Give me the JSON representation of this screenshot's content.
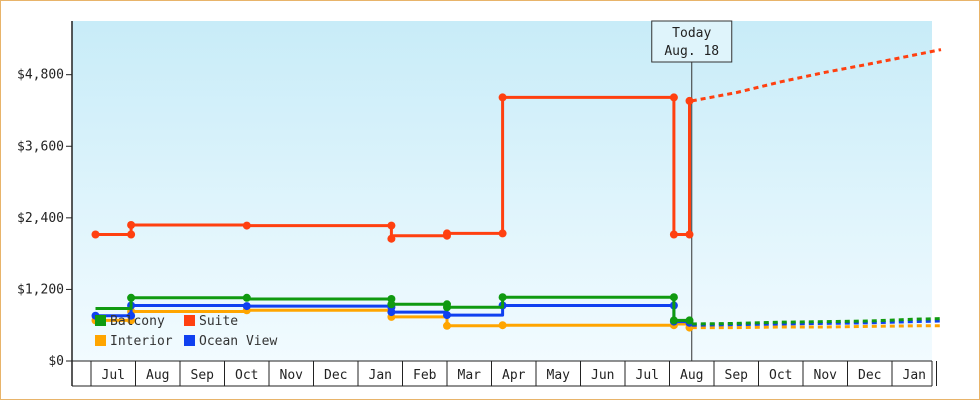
{
  "chart_data": {
    "type": "line",
    "title": "",
    "xlabel": "",
    "ylabel": "",
    "ylim": [
      0,
      5700
    ],
    "y_ticks": [
      0,
      1200,
      2400,
      3600,
      4800
    ],
    "y_tick_labels": [
      "$0",
      "$1,200",
      "$2,400",
      "$3,600",
      "$4,800"
    ],
    "x_range": [
      -0.4,
      18.6
    ],
    "x_tick_labels": [
      "Jul",
      "Aug",
      "Sep",
      "Oct",
      "Nov",
      "Dec",
      "Jan",
      "Feb",
      "Mar",
      "Apr",
      "May",
      "Jun",
      "Jul",
      "Aug",
      "Sep",
      "Oct",
      "Nov",
      "Dec",
      "Jan"
    ],
    "today": {
      "line1": "Today",
      "line2": "Aug. 18",
      "x": 13.0
    },
    "legend": {
      "placement": "bottom-left"
    },
    "grid": false,
    "series": [
      {
        "name": "Suite",
        "color": "#ff4010",
        "points": [
          [
            -0.4,
            2120
          ],
          [
            0.4,
            2120
          ],
          [
            0.4,
            2280
          ],
          [
            3.0,
            2280
          ],
          [
            3.0,
            2270
          ],
          [
            6.25,
            2270
          ],
          [
            6.25,
            2050
          ],
          [
            6.25,
            2100
          ],
          [
            7.5,
            2100
          ],
          [
            7.5,
            2140
          ],
          [
            8.75,
            2140
          ],
          [
            8.75,
            4420
          ],
          [
            12.6,
            4420
          ],
          [
            12.6,
            2120
          ],
          [
            12.95,
            2120
          ],
          [
            12.95,
            4360
          ],
          [
            13.0,
            4360
          ]
        ],
        "markers": [
          [
            -0.4,
            2120
          ],
          [
            0.4,
            2120
          ],
          [
            0.4,
            2280
          ],
          [
            3.0,
            2270
          ],
          [
            6.25,
            2270
          ],
          [
            6.25,
            2050
          ],
          [
            7.5,
            2100
          ],
          [
            7.5,
            2140
          ],
          [
            8.75,
            2140
          ],
          [
            8.75,
            4420
          ],
          [
            12.6,
            4420
          ],
          [
            12.6,
            2120
          ],
          [
            12.95,
            2120
          ],
          [
            12.95,
            4360
          ]
        ],
        "forecast": [
          [
            13.0,
            4360
          ],
          [
            14.0,
            4500
          ],
          [
            15.0,
            4680
          ],
          [
            16.0,
            4840
          ],
          [
            17.0,
            4980
          ],
          [
            18.0,
            5130
          ],
          [
            18.6,
            5220
          ]
        ]
      },
      {
        "name": "Balcony",
        "color": "#109a10",
        "points": [
          [
            -0.4,
            880
          ],
          [
            0.4,
            880
          ],
          [
            0.4,
            1060
          ],
          [
            3.0,
            1060
          ],
          [
            3.0,
            1040
          ],
          [
            6.25,
            1040
          ],
          [
            6.25,
            950
          ],
          [
            7.5,
            950
          ],
          [
            7.5,
            900
          ],
          [
            8.75,
            900
          ],
          [
            8.75,
            1070
          ],
          [
            12.6,
            1070
          ],
          [
            12.6,
            680
          ],
          [
            13.0,
            680
          ]
        ],
        "markers": [
          [
            0.4,
            1060
          ],
          [
            3.0,
            1060
          ],
          [
            6.25,
            1040
          ],
          [
            6.25,
            950
          ],
          [
            7.5,
            950
          ],
          [
            7.5,
            900
          ],
          [
            8.75,
            1070
          ],
          [
            12.6,
            1070
          ],
          [
            12.6,
            680
          ],
          [
            12.95,
            680
          ]
        ],
        "forecast": [
          [
            13.0,
            620
          ],
          [
            14.0,
            630
          ],
          [
            15.0,
            650
          ],
          [
            16.0,
            660
          ],
          [
            17.0,
            670
          ],
          [
            18.0,
            700
          ],
          [
            18.6,
            710
          ]
        ]
      },
      {
        "name": "Interior",
        "color": "#ffa500",
        "points": [
          [
            -0.4,
            680
          ],
          [
            0.4,
            680
          ],
          [
            0.4,
            830
          ],
          [
            3.0,
            830
          ],
          [
            3.0,
            850
          ],
          [
            6.25,
            850
          ],
          [
            6.25,
            740
          ],
          [
            7.5,
            740
          ],
          [
            7.5,
            590
          ],
          [
            8.75,
            590
          ],
          [
            8.75,
            600
          ],
          [
            12.6,
            600
          ],
          [
            12.6,
            620
          ],
          [
            13.0,
            620
          ]
        ],
        "markers": [
          [
            -0.4,
            680
          ],
          [
            0.4,
            680
          ],
          [
            0.4,
            830
          ],
          [
            3.0,
            850
          ],
          [
            6.25,
            740
          ],
          [
            7.5,
            590
          ],
          [
            8.75,
            600
          ],
          [
            12.6,
            600
          ],
          [
            12.95,
            560
          ]
        ],
        "forecast": [
          [
            13.0,
            560
          ],
          [
            14.0,
            560
          ],
          [
            15.0,
            570
          ],
          [
            16.0,
            570
          ],
          [
            17.0,
            580
          ],
          [
            18.0,
            590
          ],
          [
            18.6,
            590
          ]
        ]
      },
      {
        "name": "Ocean View",
        "color": "#1040f0",
        "points": [
          [
            -0.4,
            760
          ],
          [
            0.4,
            760
          ],
          [
            0.4,
            930
          ],
          [
            3.0,
            930
          ],
          [
            3.0,
            920
          ],
          [
            6.25,
            920
          ],
          [
            6.25,
            820
          ],
          [
            7.5,
            820
          ],
          [
            7.5,
            770
          ],
          [
            8.75,
            770
          ],
          [
            8.75,
            930
          ],
          [
            12.6,
            930
          ],
          [
            12.6,
            660
          ],
          [
            13.0,
            660
          ]
        ],
        "markers": [
          [
            -0.4,
            760
          ],
          [
            0.4,
            760
          ],
          [
            0.4,
            930
          ],
          [
            3.0,
            920
          ],
          [
            6.25,
            900
          ],
          [
            6.25,
            820
          ],
          [
            7.5,
            770
          ],
          [
            8.75,
            930
          ],
          [
            12.6,
            930
          ],
          [
            12.6,
            660
          ],
          [
            12.95,
            640
          ]
        ],
        "forecast": [
          [
            13.0,
            600
          ],
          [
            14.0,
            610
          ],
          [
            15.0,
            620
          ],
          [
            16.0,
            630
          ],
          [
            17.0,
            640
          ],
          [
            18.0,
            660
          ],
          [
            18.6,
            670
          ]
        ]
      }
    ]
  }
}
